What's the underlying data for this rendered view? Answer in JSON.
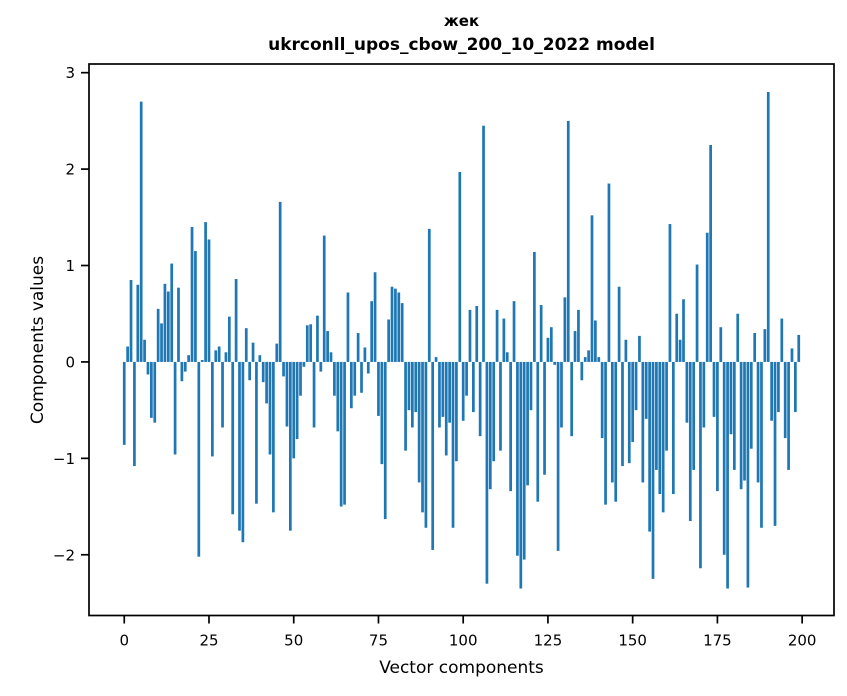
{
  "window": {
    "background": "#ffffff"
  },
  "chart_data": {
    "type": "bar",
    "title": "жек",
    "subtitle": "ukrconll_upos_cbow_200_10_2022 model",
    "xlabel": "Vector components",
    "ylabel": "Components values",
    "bar_color": "#1f77b4",
    "axis_color": "#000000",
    "grid": false,
    "legend": "none",
    "xlim": [
      -10.4,
      209.4
    ],
    "ylim": [
      -2.63,
      3.09
    ],
    "xticks": [
      0,
      25,
      50,
      75,
      100,
      125,
      150,
      175,
      200
    ],
    "yticks": [
      3,
      2,
      1,
      0,
      -1,
      -2
    ],
    "ytick_labels": [
      "3",
      "2",
      "1",
      "0",
      "−1",
      "−2"
    ],
    "x_is_index": true,
    "n_components": 200,
    "values": [
      -0.86,
      0.16,
      0.85,
      -1.08,
      0.8,
      2.7,
      0.23,
      -0.13,
      -0.58,
      -0.63,
      0.55,
      0.4,
      0.81,
      0.73,
      1.02,
      -0.96,
      0.77,
      -0.2,
      -0.1,
      0.07,
      1.4,
      1.15,
      -2.02,
      0.02,
      1.45,
      1.27,
      -0.98,
      0.12,
      0.16,
      -0.68,
      0.1,
      0.47,
      -1.58,
      0.86,
      -1.75,
      -1.87,
      0.35,
      -0.19,
      0.2,
      -1.47,
      0.07,
      -0.21,
      -0.43,
      -0.96,
      -1.56,
      0.19,
      1.66,
      -0.15,
      -0.67,
      -1.75,
      -1.0,
      -0.8,
      -0.35,
      -0.05,
      0.38,
      0.39,
      -0.68,
      0.48,
      -0.1,
      1.31,
      0.32,
      0.1,
      -0.35,
      -0.72,
      -1.5,
      -1.48,
      0.72,
      -0.48,
      -0.35,
      0.3,
      -0.32,
      0.15,
      -0.12,
      0.63,
      0.93,
      -0.56,
      -1.06,
      -1.63,
      0.44,
      0.78,
      0.76,
      0.72,
      0.61,
      -0.92,
      -0.5,
      -0.68,
      -0.52,
      -1.25,
      -1.56,
      -1.72,
      1.38,
      -1.95,
      0.05,
      -0.68,
      -0.57,
      -0.97,
      -0.63,
      -1.72,
      -1.03,
      1.97,
      -0.61,
      -0.35,
      0.54,
      -0.52,
      0.58,
      -0.77,
      2.45,
      -2.3,
      -1.32,
      -1.03,
      0.54,
      -0.92,
      0.45,
      0.1,
      -1.34,
      0.63,
      -2.01,
      -2.35,
      -2.05,
      -1.28,
      -0.5,
      1.14,
      -1.45,
      0.59,
      -1.17,
      0.25,
      0.36,
      -0.03,
      -1.96,
      -0.68,
      0.67,
      2.5,
      -0.77,
      0.32,
      0.54,
      -0.19,
      0.05,
      0.12,
      1.52,
      0.43,
      0.05,
      -0.79,
      -1.48,
      1.85,
      -1.25,
      -1.45,
      0.78,
      -1.08,
      0.23,
      -1.05,
      -0.83,
      -0.5,
      0.27,
      -1.25,
      -0.59,
      -1.76,
      -2.25,
      -1.12,
      -1.37,
      -1.56,
      -0.92,
      1.43,
      -1.37,
      0.5,
      0.23,
      0.65,
      -0.63,
      -1.65,
      -1.12,
      1.01,
      -2.14,
      -0.68,
      1.34,
      2.25,
      -0.57,
      -1.34,
      0.36,
      -2.0,
      -2.35,
      -0.75,
      -1.12,
      0.5,
      -1.32,
      -1.23,
      -2.34,
      -0.9,
      0.3,
      -1.25,
      -1.72,
      0.34,
      2.8,
      -0.61,
      -1.7,
      -0.52,
      0.45,
      -0.79,
      -1.12,
      0.14,
      -0.52,
      0.28
    ]
  }
}
